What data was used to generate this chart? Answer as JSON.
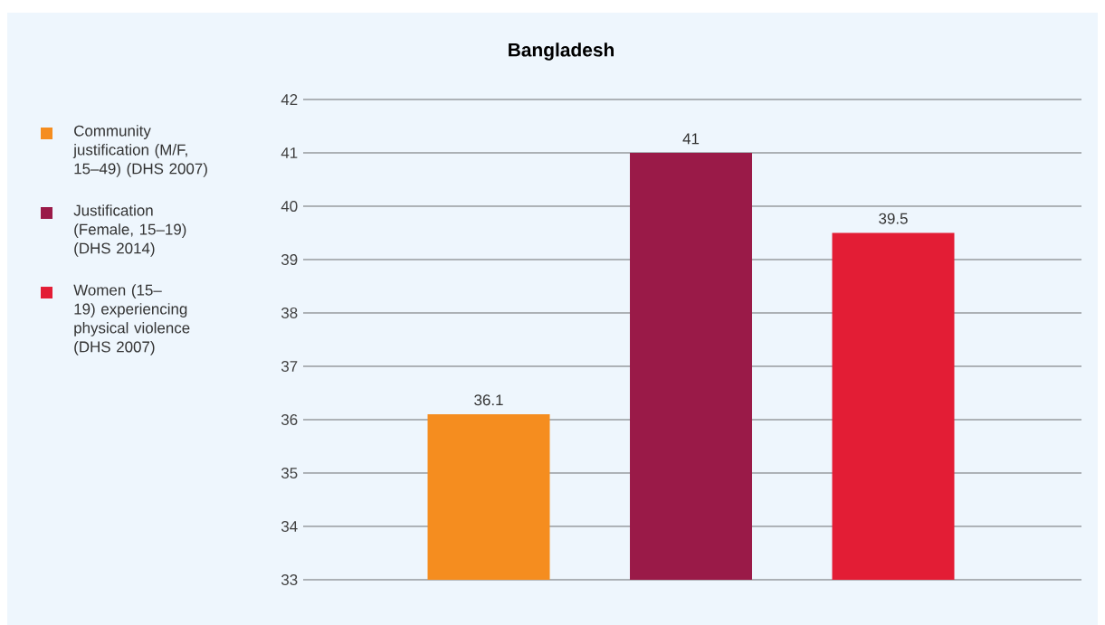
{
  "chart_data": {
    "type": "bar",
    "title": "Bangladesh",
    "categories": [
      null,
      null,
      null
    ],
    "series": [
      {
        "name": "Community justification (M/F, 15–49) (DHS 2007)",
        "color": "#f58d1f",
        "values": [
          36.1,
          null,
          null
        ]
      },
      {
        "name": "Justification (Female, 15–19) (DHS 2014)",
        "color": "#9a1a48",
        "values": [
          null,
          41,
          null
        ]
      },
      {
        "name": "Women (15–19) experiencing physical violence (DHS 2007)",
        "color": "#e31d35",
        "values": [
          null,
          null,
          39.5
        ]
      }
    ],
    "ylim": [
      33,
      42
    ],
    "yticks": [
      33,
      34,
      35,
      36,
      37,
      38,
      39,
      40,
      41,
      42
    ],
    "grid": "y",
    "legend": "left",
    "data_labels": true
  }
}
